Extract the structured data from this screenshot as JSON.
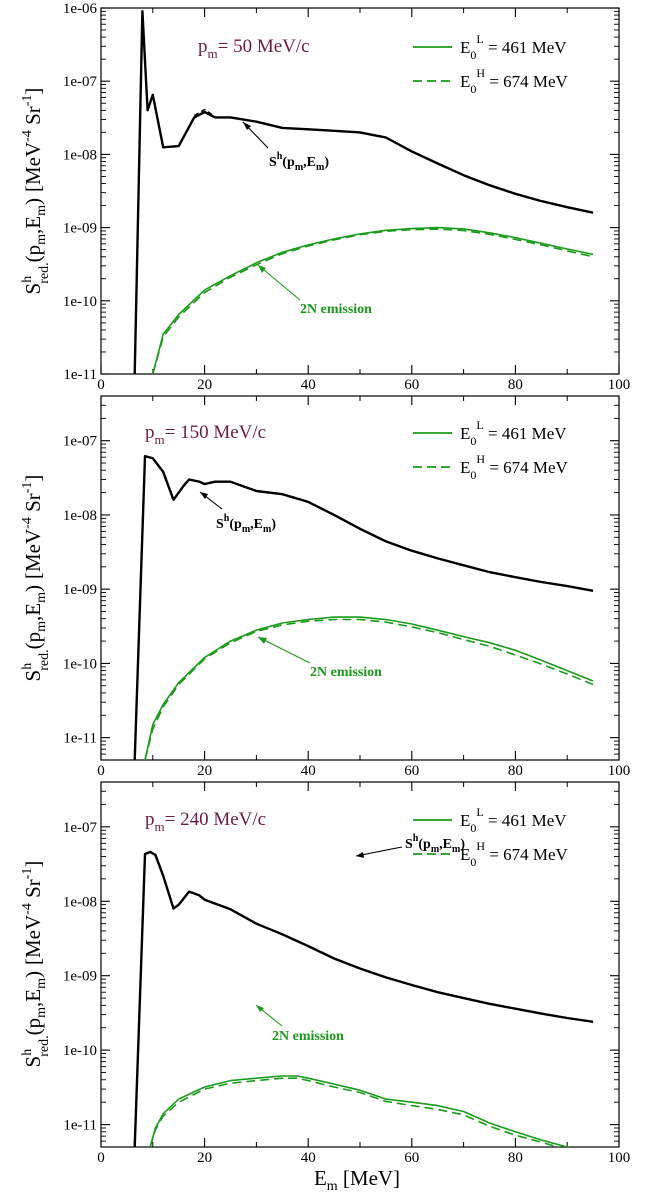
{
  "colors": {
    "black": "#000000",
    "green": "#1a9a1a",
    "pm_color": "#6b1d45"
  },
  "figure": {
    "xlabel_main": "E",
    "xlabel_sub": "m",
    "xlabel_unit": " [MeV]",
    "ylabel": {
      "S": "S",
      "sup_h": "h",
      "sub_red": "red.",
      "args_open": "(p",
      "sub_m1": "m",
      "comma_E": ",E",
      "sub_m2": "m",
      "args_close": ")",
      "unit_open": "[MeV",
      "sup_m4": "-4",
      "unit_sr": " Sr",
      "sup_m1": "-1",
      "unit_close": "]"
    },
    "legend": {
      "E0": "E",
      "sub0": "0",
      "supL": "L",
      "supH": "H",
      "L_value": " = 461 MeV",
      "H_value": " = 674 MeV"
    },
    "annotations": {
      "sh_S": "S",
      "sh_sup": "h",
      "sh_args": "(p",
      "sh_sub1": "m",
      "sh_mid": ",E",
      "sh_sub2": "m",
      "sh_close": ")",
      "emission": "2N emission"
    }
  },
  "chart_data": [
    {
      "type": "line",
      "pm_label": "p",
      "pm_sub": "m",
      "pm_value": "= 50 MeV/c",
      "xlim": [
        0,
        100
      ],
      "ylim": [
        1e-11,
        1e-06
      ],
      "yscale": "log",
      "x_ticks": [
        "0",
        "20",
        "40",
        "60",
        "80",
        "100"
      ],
      "y_ticks": [
        "1e-11",
        "1e-10",
        "1e-09",
        "1e-08",
        "1e-07",
        "1e-06"
      ],
      "series": [
        {
          "style": "black-solid",
          "x": [
            6.5,
            8,
            9,
            10,
            12,
            15,
            18,
            20,
            22,
            25,
            30,
            35,
            40,
            45,
            50,
            55,
            60,
            65,
            70,
            75,
            80,
            85,
            90,
            95
          ],
          "y": [
            1e-11,
            9e-07,
            4e-08,
            6.5e-08,
            1.25e-08,
            1.3e-08,
            3.2e-08,
            3.8e-08,
            3.2e-08,
            3.2e-08,
            2.8e-08,
            2.3e-08,
            2.2e-08,
            2.1e-08,
            2e-08,
            1.7e-08,
            1.1e-08,
            7.5e-09,
            5.2e-09,
            3.8e-09,
            2.9e-09,
            2.3e-09,
            1.9e-09,
            1.6e-09
          ]
        },
        {
          "style": "black-dashed",
          "x": [
            18,
            20,
            22
          ],
          "y": [
            3.4e-08,
            4.1e-08,
            3.3e-08
          ]
        },
        {
          "name": "E0L = 461 MeV",
          "style": "green-solid",
          "x": [
            10,
            12,
            15,
            20,
            25,
            30,
            35,
            40,
            45,
            50,
            55,
            60,
            65,
            70,
            75,
            80,
            85,
            90,
            95
          ],
          "y": [
            1e-11,
            3.5e-11,
            6.5e-11,
            1.4e-10,
            2.2e-10,
            3.3e-10,
            4.6e-10,
            5.8e-10,
            7e-10,
            8.2e-10,
            9.2e-10,
            9.7e-10,
            1e-09,
            9.6e-10,
            8.5e-10,
            7.3e-10,
            6.1e-10,
            5.1e-10,
            4.3e-10
          ]
        },
        {
          "name": "E0H = 674 MeV",
          "style": "green-dashed",
          "x": [
            10,
            12,
            15,
            20,
            25,
            30,
            35,
            40,
            45,
            50,
            55,
            60,
            65,
            70,
            75,
            80,
            85,
            90,
            95
          ],
          "y": [
            1e-11,
            3.2e-11,
            6e-11,
            1.3e-10,
            2.1e-10,
            3.1e-10,
            4.4e-10,
            5.6e-10,
            6.8e-10,
            8e-10,
            8.9e-10,
            9.4e-10,
            9.5e-10,
            9.1e-10,
            8.1e-10,
            6.9e-10,
            5.8e-10,
            4.8e-10,
            4e-10
          ]
        }
      ]
    },
    {
      "type": "line",
      "pm_label": "p",
      "pm_sub": "m",
      "pm_value": "= 150 MeV/c",
      "xlim": [
        0,
        100
      ],
      "ylim": [
        5e-12,
        4e-07
      ],
      "yscale": "log",
      "x_ticks": [
        "0",
        "20",
        "40",
        "60",
        "80",
        "100"
      ],
      "y_ticks": [
        "1e-11",
        "1e-10",
        "1e-09",
        "1e-08",
        "1e-07"
      ],
      "series": [
        {
          "style": "black-solid",
          "x": [
            6.5,
            8.5,
            10,
            12,
            14,
            16,
            17,
            19,
            20,
            22,
            25,
            30,
            35,
            40,
            45,
            50,
            55,
            60,
            65,
            70,
            75,
            80,
            85,
            90,
            95
          ],
          "y": [
            5e-12,
            6.2e-08,
            5.8e-08,
            3.8e-08,
            1.6e-08,
            2.5e-08,
            3e-08,
            2.8e-08,
            2.6e-08,
            2.8e-08,
            2.8e-08,
            2.1e-08,
            1.9e-08,
            1.5e-08,
            1e-08,
            6.5e-09,
            4.4e-09,
            3.3e-09,
            2.6e-09,
            2.1e-09,
            1.7e-09,
            1.45e-09,
            1.25e-09,
            1.1e-09,
            9.5e-10
          ]
        },
        {
          "name": "E0L = 461 MeV",
          "style": "green-solid",
          "x": [
            8.5,
            10,
            12,
            15,
            20,
            25,
            30,
            35,
            40,
            45,
            50,
            55,
            60,
            65,
            70,
            75,
            80,
            85,
            90,
            95
          ],
          "y": [
            5e-12,
            1.5e-11,
            2.8e-11,
            5.5e-11,
            1.2e-10,
            2e-10,
            2.8e-10,
            3.5e-10,
            3.9e-10,
            4.2e-10,
            4.2e-10,
            3.9e-10,
            3.4e-10,
            2.8e-10,
            2.3e-10,
            1.9e-10,
            1.5e-10,
            1.1e-10,
            8e-11,
            5.8e-11
          ]
        },
        {
          "name": "E0H = 674 MeV",
          "style": "green-dashed",
          "x": [
            8.5,
            10,
            12,
            15,
            20,
            25,
            30,
            35,
            40,
            45,
            50,
            55,
            60,
            65,
            70,
            75,
            80,
            85,
            90,
            95
          ],
          "y": [
            5e-12,
            1.3e-11,
            2.6e-11,
            5.2e-11,
            1.15e-10,
            1.9e-10,
            2.7e-10,
            3.3e-10,
            3.7e-10,
            3.9e-10,
            3.9e-10,
            3.6e-10,
            3.1e-10,
            2.6e-10,
            2.1e-10,
            1.7e-10,
            1.3e-10,
            9.8e-11,
            7.2e-11,
            5.2e-11
          ]
        }
      ]
    },
    {
      "type": "line",
      "pm_label": "p",
      "pm_sub": "m",
      "pm_value": "= 240 MeV/c",
      "xlim": [
        0,
        100
      ],
      "ylim": [
        5e-12,
        4e-07
      ],
      "yscale": "log",
      "x_ticks": [
        "0",
        "20",
        "40",
        "60",
        "80",
        "100"
      ],
      "y_ticks": [
        "1e-11",
        "1e-10",
        "1e-09",
        "1e-08",
        "1e-07"
      ],
      "series": [
        {
          "style": "black-solid",
          "x": [
            6.5,
            8.5,
            9.5,
            10.5,
            12,
            14,
            15,
            17,
            19,
            20,
            25,
            30,
            35,
            40,
            45,
            50,
            55,
            60,
            65,
            70,
            75,
            80,
            85,
            90,
            95
          ],
          "y": [
            5e-12,
            4.3e-08,
            4.6e-08,
            4.2e-08,
            2.2e-08,
            8e-09,
            9e-09,
            1.35e-08,
            1.2e-08,
            1.05e-08,
            7.8e-09,
            5e-09,
            3.6e-09,
            2.5e-09,
            1.7e-09,
            1.25e-09,
            9.5e-10,
            7.5e-10,
            6e-10,
            5e-10,
            4.2e-10,
            3.6e-10,
            3.1e-10,
            2.7e-10,
            2.4e-10
          ]
        },
        {
          "name": "E0L = 461 MeV",
          "style": "green-solid",
          "x": [
            9.5,
            10.5,
            12,
            15,
            20,
            25,
            30,
            35,
            38,
            40,
            45,
            50,
            55,
            60,
            65,
            70,
            75,
            80,
            85,
            90,
            95
          ],
          "y": [
            5e-12,
            9e-12,
            1.4e-11,
            2.2e-11,
            3.2e-11,
            3.9e-11,
            4.2e-11,
            4.5e-11,
            4.5e-11,
            4.2e-11,
            3.5e-11,
            2.9e-11,
            2.2e-11,
            2e-11,
            1.8e-11,
            1.5e-11,
            1.05e-11,
            8e-12,
            6.2e-12,
            5e-12,
            4e-12
          ]
        },
        {
          "name": "E0H = 674 MeV",
          "style": "green-dashed",
          "x": [
            9.5,
            10.5,
            12,
            15,
            20,
            25,
            30,
            35,
            38,
            40,
            45,
            50,
            55,
            60,
            65,
            70,
            75,
            80,
            85,
            90,
            95
          ],
          "y": [
            5e-12,
            8.5e-12,
            1.3e-11,
            2e-11,
            3e-11,
            3.6e-11,
            3.9e-11,
            4.2e-11,
            4.2e-11,
            3.9e-11,
            3.2e-11,
            2.7e-11,
            2.05e-11,
            1.8e-11,
            1.6e-11,
            1.35e-11,
            9.5e-12,
            7.2e-12,
            5.8e-12,
            4.6e-12,
            3.7e-12
          ]
        }
      ]
    }
  ]
}
